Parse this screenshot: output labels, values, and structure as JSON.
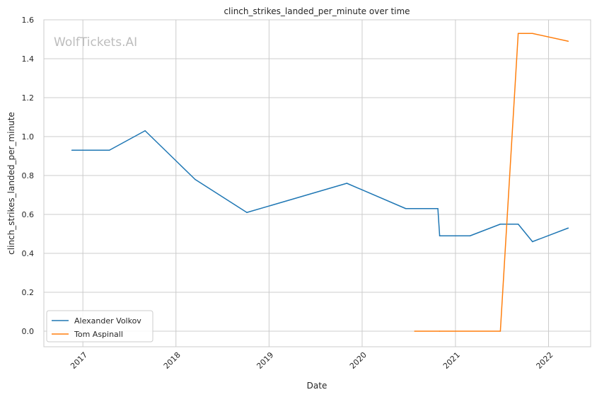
{
  "chart_data": {
    "type": "line",
    "title": "clinch_strikes_landed_per_minute over time",
    "xlabel": "Date",
    "ylabel": "clinch_strikes_landed_per_minute",
    "watermark": "WolfTickets.AI",
    "xlim": [
      "2016-08-01",
      "2022-06-15"
    ],
    "ylim": [
      -0.08,
      1.6
    ],
    "x_ticks": [
      "2017",
      "2018",
      "2019",
      "2020",
      "2021",
      "2022"
    ],
    "y_ticks": [
      0.0,
      0.2,
      0.4,
      0.6,
      0.8,
      1.0,
      1.2,
      1.4,
      1.6
    ],
    "y_tick_labels": [
      "0.0",
      "0.2",
      "0.4",
      "0.6",
      "0.8",
      "1.0",
      "1.2",
      "1.4",
      "1.6"
    ],
    "grid": true,
    "legend_position": "lower-left",
    "series": [
      {
        "name": "Alexander Volkov",
        "color": "#1f77b4",
        "points": [
          [
            "2016-11-19",
            0.93
          ],
          [
            "2017-04-15",
            0.93
          ],
          [
            "2017-09-02",
            1.03
          ],
          [
            "2018-03-17",
            0.78
          ],
          [
            "2018-10-06",
            0.61
          ],
          [
            "2019-11-02",
            0.76
          ],
          [
            "2020-06-20",
            0.63
          ],
          [
            "2020-10-24",
            0.63
          ],
          [
            "2020-10-31",
            0.49
          ],
          [
            "2021-02-27",
            0.49
          ],
          [
            "2021-06-26",
            0.55
          ],
          [
            "2021-09-04",
            0.55
          ],
          [
            "2021-10-30",
            0.46
          ],
          [
            "2022-03-19",
            0.53
          ]
        ]
      },
      {
        "name": "Tom Aspinall",
        "color": "#ff7f0e",
        "points": [
          [
            "2020-07-25",
            0.0
          ],
          [
            "2020-10-31",
            0.0
          ],
          [
            "2021-06-26",
            0.0
          ],
          [
            "2021-09-04",
            1.53
          ],
          [
            "2021-10-30",
            1.53
          ],
          [
            "2022-03-19",
            1.49
          ]
        ]
      }
    ]
  }
}
